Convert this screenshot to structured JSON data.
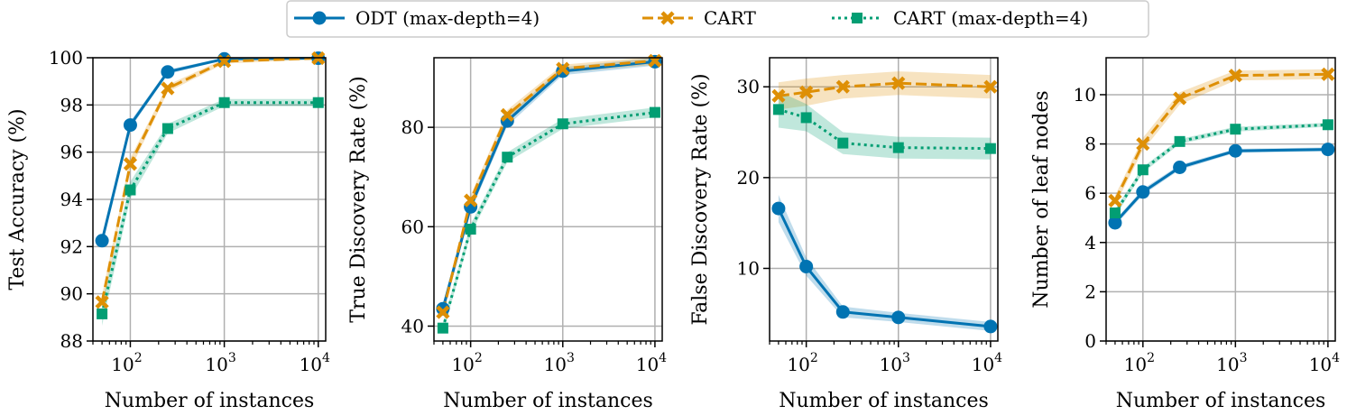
{
  "colors": {
    "odt": "#0173b2",
    "cart": "#de8f05",
    "cart_d4": "#029e73",
    "grid": "#b0b0b0"
  },
  "legend": {
    "items": [
      {
        "key": "odt",
        "label": "ODT (max-depth=4)",
        "marker": "circle",
        "dash": "solid"
      },
      {
        "key": "cart",
        "label": "CART",
        "marker": "x",
        "dash": "dashed"
      },
      {
        "key": "cart_d4",
        "label": "CART (max-depth=4)",
        "marker": "square",
        "dash": "dotted"
      }
    ]
  },
  "chart_data": [
    {
      "type": "line",
      "xscale": "log",
      "x": [
        50,
        100,
        250,
        1000,
        10000
      ],
      "xlim": [
        40,
        12000
      ],
      "xticks": [
        100,
        1000,
        10000
      ],
      "xtick_labels": [
        {
          "base": "10",
          "exp": "2"
        },
        {
          "base": "10",
          "exp": "3"
        },
        {
          "base": "10",
          "exp": "4"
        }
      ],
      "xlabel": "Number of instances",
      "ylabel": "Test Accuracy (%)",
      "ylim": [
        88,
        100
      ],
      "yticks": [
        88,
        90,
        92,
        94,
        96,
        98,
        100
      ],
      "series": [
        {
          "name": "ODT (max-depth=4)",
          "values": [
            92.25,
            97.15,
            99.4,
            99.95,
            99.98
          ],
          "band": [
            0.2,
            0.15,
            0.1,
            0.05,
            0.02
          ]
        },
        {
          "name": "CART",
          "values": [
            89.65,
            95.5,
            98.7,
            99.85,
            99.98
          ],
          "band": [
            0.3,
            0.25,
            0.15,
            0.1,
            0.05
          ]
        },
        {
          "name": "CART (max-depth=4)",
          "values": [
            89.15,
            94.4,
            97.0,
            98.1,
            98.1
          ],
          "band": [
            0.5,
            0.35,
            0.2,
            0.15,
            0.15
          ]
        }
      ]
    },
    {
      "type": "line",
      "xscale": "log",
      "x": [
        50,
        100,
        250,
        1000,
        10000
      ],
      "xlim": [
        40,
        12000
      ],
      "xticks": [
        100,
        1000,
        10000
      ],
      "xtick_labels": [
        {
          "base": "10",
          "exp": "2"
        },
        {
          "base": "10",
          "exp": "3"
        },
        {
          "base": "10",
          "exp": "4"
        }
      ],
      "xlabel": "Number of instances",
      "ylabel": "True Discovery Rate (%)",
      "ylim": [
        37,
        94
      ],
      "yticks": [
        40,
        60,
        80
      ],
      "series": [
        {
          "name": "ODT (max-depth=4)",
          "values": [
            43.5,
            64.0,
            81.3,
            91.3,
            93.2
          ],
          "band": [
            1.0,
            1.0,
            1.0,
            0.8,
            0.8
          ]
        },
        {
          "name": "CART",
          "values": [
            42.8,
            65.3,
            82.5,
            91.8,
            93.4
          ],
          "band": [
            1.0,
            1.0,
            1.0,
            0.8,
            0.8
          ]
        },
        {
          "name": "CART (max-depth=4)",
          "values": [
            39.6,
            59.5,
            74.0,
            80.7,
            83.0
          ],
          "band": [
            1.0,
            1.0,
            1.0,
            1.0,
            1.0
          ]
        }
      ]
    },
    {
      "type": "line",
      "xscale": "log",
      "x": [
        50,
        100,
        250,
        1000,
        10000
      ],
      "xlim": [
        40,
        12000
      ],
      "xticks": [
        100,
        1000,
        10000
      ],
      "xtick_labels": [
        {
          "base": "10",
          "exp": "2"
        },
        {
          "base": "10",
          "exp": "3"
        },
        {
          "base": "10",
          "exp": "4"
        }
      ],
      "xlabel": "Number of instances",
      "ylabel": "False Discovery Rate (%)",
      "ylim": [
        2,
        33.2
      ],
      "yticks": [
        10,
        20,
        30
      ],
      "series": [
        {
          "name": "ODT (max-depth=4)",
          "values": [
            16.6,
            10.2,
            5.2,
            4.6,
            3.6
          ],
          "band": [
            1.5,
            1.0,
            0.6,
            0.5,
            0.5
          ]
        },
        {
          "name": "CART",
          "values": [
            29.0,
            29.4,
            30.0,
            30.4,
            30.0
          ],
          "band": [
            1.5,
            1.5,
            1.3,
            1.3,
            1.3
          ]
        },
        {
          "name": "CART (max-depth=4)",
          "values": [
            27.5,
            26.6,
            23.8,
            23.3,
            23.2
          ],
          "band": [
            2.0,
            1.5,
            1.2,
            1.2,
            1.2
          ]
        }
      ]
    },
    {
      "type": "line",
      "xscale": "log",
      "x": [
        50,
        100,
        250,
        1000,
        10000
      ],
      "xlim": [
        40,
        12000
      ],
      "xticks": [
        100,
        1000,
        10000
      ],
      "xtick_labels": [
        {
          "base": "10",
          "exp": "2"
        },
        {
          "base": "10",
          "exp": "3"
        },
        {
          "base": "10",
          "exp": "4"
        }
      ],
      "xlabel": "Number of instances",
      "ylabel": "Number of leaf nodes",
      "ylim": [
        0,
        11.5
      ],
      "yticks": [
        0,
        2,
        4,
        6,
        8,
        10
      ],
      "series": [
        {
          "name": "ODT (max-depth=4)",
          "values": [
            4.8,
            6.05,
            7.05,
            7.72,
            7.78
          ],
          "band": [
            0.12,
            0.12,
            0.1,
            0.08,
            0.08
          ]
        },
        {
          "name": "CART",
          "values": [
            5.7,
            8.0,
            9.85,
            10.78,
            10.83
          ],
          "band": [
            0.2,
            0.25,
            0.25,
            0.2,
            0.2
          ]
        },
        {
          "name": "CART (max-depth=4)",
          "values": [
            5.2,
            6.95,
            8.1,
            8.6,
            8.78
          ],
          "band": [
            0.15,
            0.12,
            0.1,
            0.1,
            0.08
          ]
        }
      ]
    }
  ]
}
